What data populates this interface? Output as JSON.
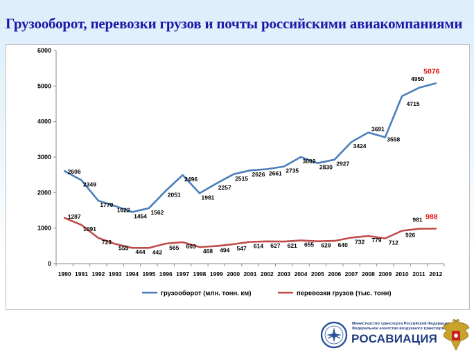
{
  "title": "Грузооборот, перевозки грузов и почты российскими авиакомпаниями",
  "chart_data": {
    "type": "line",
    "x": [
      "1990",
      "1991",
      "1992",
      "1993",
      "1994",
      "1995",
      "1996",
      "1997",
      "1998",
      "1999",
      "2000",
      "2001",
      "2002",
      "2003",
      "2004",
      "2005",
      "2006",
      "2007",
      "2008",
      "2009",
      "2010",
      "2011",
      "2012"
    ],
    "yticks": [
      "0",
      "1000",
      "2000",
      "3000",
      "4000",
      "5000",
      "6000"
    ],
    "ylim": [
      0,
      6000
    ],
    "grid": false,
    "legend": "bottom",
    "series": [
      {
        "name": "грузооборот (млн. тонн. км)",
        "color": "#4a7ebb",
        "values": [
          2606,
          2349,
          1770,
          1622,
          1454,
          1562,
          2051,
          2496,
          1981,
          2257,
          2515,
          2626,
          2661,
          2735,
          3002,
          2830,
          2927,
          3424,
          3691,
          3558,
          4715,
          4950,
          5076
        ],
        "labels": [
          "2606",
          "2349",
          "1770",
          "1622",
          "1454",
          "1562",
          "2051",
          "2496",
          "1981",
          "2257",
          "2515",
          "2626",
          "2661",
          "2735",
          "3002",
          "2830",
          "2927",
          "3424",
          "3691",
          "3558",
          "4715",
          "4950",
          "5076"
        ]
      },
      {
        "name": "перевозки грузов (тыс. тонн)",
        "color": "#be4b48",
        "values": [
          1287,
          1091,
          723,
          555,
          444,
          442,
          565,
          603,
          468,
          494,
          547,
          614,
          627,
          621,
          655,
          629,
          640,
          732,
          779,
          712,
          926,
          981,
          988
        ],
        "labels": [
          "1287",
          "1091",
          "723",
          "555",
          "444",
          "442",
          "565",
          "603",
          "468",
          "494",
          "547",
          "614",
          "627",
          "621",
          "655",
          "629",
          "640",
          "732",
          "779",
          "712",
          "926",
          "981",
          "988"
        ]
      }
    ],
    "highlight_color": "#e01010"
  },
  "footer": {
    "ministry": "Министерство транспорта Российской Федерации",
    "agency": "Федеральное агентство воздушного транспорта",
    "brand": "РОСАВИАЦИЯ"
  }
}
